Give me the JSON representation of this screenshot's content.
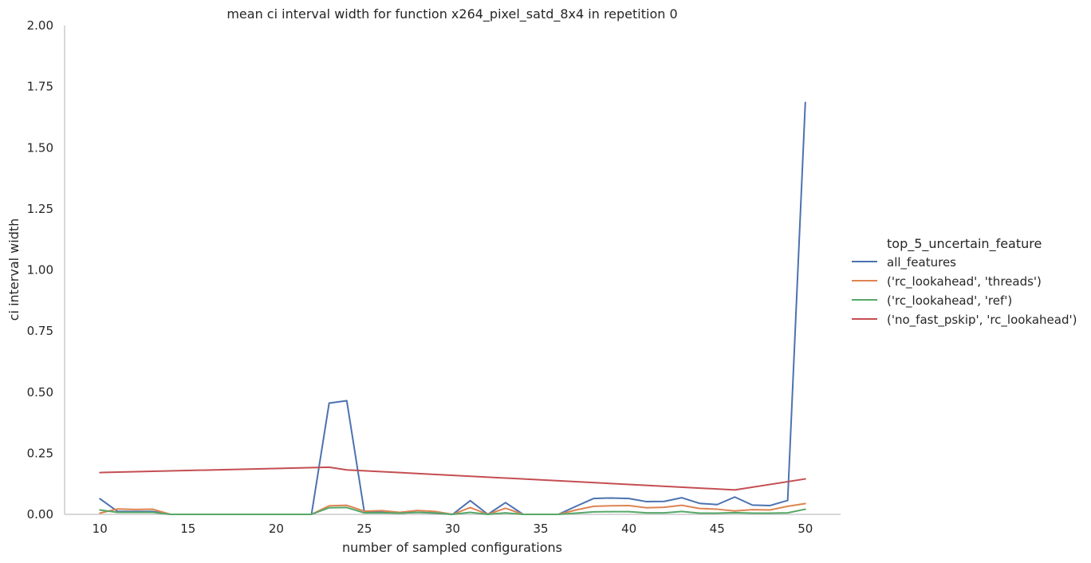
{
  "chart_data": {
    "type": "line",
    "title": "mean ci interval width for function x264_pixel_satd_8x4 in repetition 0",
    "xlabel": "number of sampled configurations",
    "ylabel": "ci interval width",
    "xlim": [
      8,
      52
    ],
    "ylim": [
      0,
      2.0
    ],
    "xticks": [
      10,
      15,
      20,
      25,
      30,
      35,
      40,
      45,
      50
    ],
    "xtick_labels": [
      "10",
      "15",
      "20",
      "25",
      "30",
      "35",
      "40",
      "45",
      "50"
    ],
    "yticks": [
      0,
      0.25,
      0.5,
      0.75,
      1.0,
      1.25,
      1.5,
      1.75,
      2.0
    ],
    "ytick_labels": [
      "0.00",
      "0.25",
      "0.50",
      "0.75",
      "1.00",
      "1.25",
      "1.50",
      "1.75",
      "2.00"
    ],
    "grid": false,
    "legend": {
      "title": "top_5_uncertain_feature",
      "placement": "right"
    },
    "series": [
      {
        "name": "all_features",
        "color": "#4c72b0",
        "x": [
          10,
          11,
          12,
          13,
          14,
          15,
          16,
          17,
          18,
          19,
          20,
          21,
          22,
          23,
          24,
          25,
          26,
          27,
          28,
          29,
          30,
          31,
          32,
          33,
          34,
          35,
          36,
          37,
          38,
          39,
          40,
          41,
          42,
          43,
          44,
          45,
          46,
          47,
          48,
          49,
          50
        ],
        "y": [
          0.064,
          0.012,
          0.012,
          0.012,
          0,
          0,
          0,
          0,
          0,
          0,
          0,
          0,
          0,
          0.455,
          0.465,
          0.008,
          0.008,
          0.005,
          0.008,
          0.005,
          0,
          0.056,
          0,
          0.048,
          0,
          0,
          0,
          0.033,
          0.065,
          0.067,
          0.065,
          0.052,
          0.053,
          0.068,
          0.045,
          0.04,
          0.071,
          0.038,
          0.036,
          0.057,
          1.685
        ]
      },
      {
        "name": "('rc_lookahead', 'threads')",
        "color": "#dd8452",
        "x": [
          10,
          11,
          12,
          13,
          14,
          15,
          16,
          17,
          18,
          19,
          20,
          21,
          22,
          23,
          24,
          25,
          26,
          27,
          28,
          29,
          30,
          31,
          32,
          33,
          34,
          35,
          36,
          37,
          38,
          39,
          40,
          41,
          42,
          43,
          44,
          45,
          46,
          47,
          48,
          49,
          50
        ],
        "y": [
          0.005,
          0.022,
          0.02,
          0.021,
          0,
          0,
          0,
          0,
          0,
          0,
          0,
          0,
          0,
          0.035,
          0.037,
          0.013,
          0.015,
          0.008,
          0.016,
          0.012,
          0,
          0.028,
          0,
          0.025,
          0,
          0,
          0,
          0.018,
          0.033,
          0.035,
          0.036,
          0.027,
          0.029,
          0.037,
          0.024,
          0.021,
          0.014,
          0.019,
          0.018,
          0.033,
          0.044
        ]
      },
      {
        "name": "('rc_lookahead', 'ref')",
        "color": "#55a868",
        "x": [
          10,
          11,
          12,
          13,
          14,
          15,
          16,
          17,
          18,
          19,
          20,
          21,
          22,
          23,
          24,
          25,
          26,
          27,
          28,
          29,
          30,
          31,
          32,
          33,
          34,
          35,
          36,
          37,
          38,
          39,
          40,
          41,
          42,
          43,
          44,
          45,
          46,
          47,
          48,
          49,
          50
        ],
        "y": [
          0.018,
          0.008,
          0.008,
          0.008,
          0,
          0,
          0,
          0,
          0,
          0,
          0,
          0,
          0,
          0.027,
          0.028,
          0.006,
          0.006,
          0.005,
          0.008,
          0.006,
          0,
          0.008,
          0,
          0.006,
          0,
          0,
          0,
          0.005,
          0.01,
          0.011,
          0.011,
          0.006,
          0.006,
          0.012,
          0.005,
          0.005,
          0.007,
          0.005,
          0.005,
          0.006,
          0.021
        ]
      },
      {
        "name": "('no_fast_pskip', 'rc_lookahead')",
        "color": "#c44e52",
        "x": [
          10,
          23,
          24,
          46,
          50
        ],
        "y": [
          0.171,
          0.193,
          0.182,
          0.1,
          0.145
        ]
      }
    ]
  }
}
